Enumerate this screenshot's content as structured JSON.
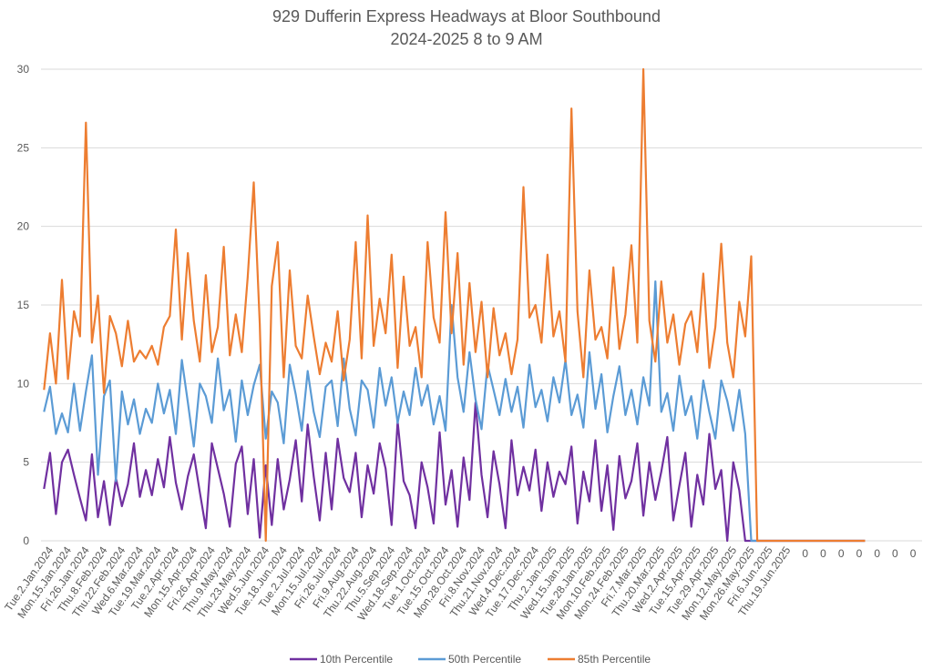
{
  "chart_data": {
    "type": "line",
    "title": "929 Dufferin Express Headways at Bloor Southbound",
    "subtitle": "2024-2025 8 to 9 AM",
    "xlabel": "",
    "ylabel": "",
    "ylim": [
      0,
      30
    ],
    "yticks": [
      0,
      5,
      10,
      15,
      20,
      25,
      30
    ],
    "grid": true,
    "legend_position": "bottom",
    "x_tick_labels": [
      "Tue.2.Jan.2024",
      "Mon.15.Jan.2024",
      "Fri.26.Jan.2024",
      "Thu.8.Feb.2024",
      "Thu.22.Feb.2024",
      "Wed.6.Mar.2024",
      "Tue.19.Mar.2024",
      "Tue.2.Apr.2024",
      "Mon.15.Apr.2024",
      "Fri.26.Apr.2024",
      "Thu.9.May.2024",
      "Thu.23.May.2024",
      "Wed.5.Jun.2024",
      "Tue.18.Jun.2024",
      "Tue.2.Jul.2024",
      "Mon.15.Jul.2024",
      "Fri.26.Jul.2024",
      "Fri.9.Aug.2024",
      "Thu.22.Aug.2024",
      "Thu.5.Sep.2024",
      "Wed.18.Sep.2024",
      "Tue.1.Oct.2024",
      "Tue.15.Oct.2024",
      "Mon.28.Oct.2024",
      "Fri.8.Nov.2024",
      "Thu.21.Nov.2024",
      "Wed.4.Dec.2024",
      "Tue.17.Dec.2024",
      "Thu.2.Jan.2025",
      "Wed.15.Jan.2025",
      "Tue.28.Jan.2025",
      "Mon.10.Feb.2025",
      "Mon.24.Feb.2025",
      "Fri.7.Mar.2025",
      "Thu.20.Mar.2025",
      "Wed.2.Apr.2025",
      "Tue.15.Apr.2025",
      "Tue.29.Apr.2025",
      "Mon.12.May.2025",
      "Mon.26.May.2025",
      "Fri.6.Jun.2025",
      "Thu.19.Jun.2025",
      "0",
      "0",
      "0",
      "0",
      "0",
      "0",
      "0"
    ],
    "points_per_label": 3,
    "series": [
      {
        "name": "10th Percentile",
        "color": "#7030a0",
        "values": [
          3.3,
          5.6,
          1.7,
          5.0,
          5.8,
          4.2,
          2.7,
          1.3,
          5.5,
          1.5,
          3.8,
          1.0,
          4.0,
          2.2,
          3.6,
          6.2,
          2.8,
          4.5,
          2.9,
          5.2,
          3.4,
          6.6,
          3.7,
          2.0,
          4.1,
          5.5,
          3.1,
          0.8,
          6.2,
          4.6,
          3.0,
          0.9,
          4.9,
          6.0,
          1.7,
          5.2,
          0.2,
          4.8,
          1.0,
          5.2,
          2.0,
          3.9,
          6.4,
          2.5,
          7.4,
          4.1,
          1.3,
          5.6,
          2.0,
          6.5,
          4.0,
          3.1,
          5.6,
          1.5,
          4.8,
          3.0,
          6.2,
          4.6,
          1.0,
          7.6,
          3.8,
          2.9,
          0.8,
          5.0,
          3.4,
          1.1,
          6.9,
          2.3,
          4.5,
          0.9,
          5.3,
          2.6,
          8.8,
          4.2,
          1.5,
          5.7,
          3.6,
          0.8,
          6.4,
          2.9,
          4.7,
          3.2,
          5.8,
          1.9,
          5.0,
          2.8,
          4.4,
          3.6,
          6.0,
          1.1,
          4.4,
          2.5,
          6.4,
          1.9,
          4.8,
          0.7,
          5.4,
          2.7,
          3.8,
          6.2,
          1.6,
          5.0,
          2.6,
          4.4,
          6.6,
          1.3,
          3.5,
          5.6,
          0.9,
          4.2,
          2.3,
          6.8,
          3.3,
          4.5,
          0.0,
          5.0,
          3.2,
          0,
          0,
          0,
          0,
          0,
          0,
          0,
          0,
          0,
          0,
          0,
          0,
          0,
          0,
          0,
          0,
          0,
          0,
          0,
          0,
          0
        ]
      },
      {
        "name": "50th Percentile",
        "color": "#5b9bd5",
        "values": [
          8.2,
          9.8,
          6.8,
          8.1,
          6.9,
          10.0,
          7.0,
          9.5,
          11.8,
          4.2,
          9.2,
          10.2,
          3.8,
          9.5,
          7.4,
          9.0,
          6.8,
          8.4,
          7.5,
          10.0,
          8.1,
          9.6,
          6.8,
          11.5,
          8.8,
          6.0,
          10.0,
          9.2,
          7.5,
          11.6,
          8.3,
          9.6,
          6.3,
          10.2,
          8.0,
          9.9,
          11.2,
          6.5,
          9.5,
          8.8,
          6.2,
          11.2,
          9.3,
          7.0,
          10.8,
          8.2,
          6.6,
          9.8,
          10.2,
          7.3,
          11.6,
          8.4,
          6.7,
          10.2,
          9.6,
          7.2,
          11.0,
          8.6,
          10.4,
          7.5,
          9.5,
          8.0,
          11.0,
          8.6,
          9.9,
          7.4,
          9.2,
          7.0,
          15.0,
          10.4,
          8.2,
          12.0,
          9.0,
          7.1,
          11.2,
          9.6,
          8.0,
          10.3,
          8.2,
          9.8,
          7.2,
          11.2,
          8.5,
          9.6,
          7.6,
          10.4,
          8.8,
          11.5,
          8.0,
          9.3,
          7.2,
          12.0,
          8.4,
          10.6,
          6.9,
          9.2,
          11.1,
          8.0,
          9.6,
          7.4,
          10.4,
          8.6,
          16.5,
          8.2,
          9.4,
          7.0,
          10.5,
          8.0,
          9.2,
          6.5,
          10.2,
          8.2,
          6.5,
          10.2,
          8.9,
          7.0,
          9.6,
          6.8,
          0,
          0,
          0,
          0,
          0,
          0,
          0,
          0,
          0,
          0,
          0,
          0,
          0,
          0,
          0,
          0,
          0,
          0,
          0,
          0
        ]
      },
      {
        "name": "85th Percentile",
        "color": "#ed7d31",
        "values": [
          9.6,
          13.2,
          10.0,
          16.6,
          10.3,
          14.6,
          13.0,
          26.6,
          12.6,
          15.6,
          9.4,
          14.3,
          13.2,
          11.1,
          14.0,
          11.4,
          12.1,
          11.6,
          12.4,
          11.2,
          13.6,
          14.3,
          19.8,
          12.8,
          18.3,
          14.0,
          11.4,
          16.9,
          12.0,
          13.6,
          18.7,
          11.8,
          14.4,
          12.0,
          16.8,
          22.8,
          13.8,
          0.0,
          16.2,
          19.0,
          10.4,
          17.2,
          12.4,
          11.6,
          15.6,
          13.0,
          10.6,
          12.6,
          11.4,
          14.6,
          10.2,
          12.8,
          19.0,
          11.6,
          20.7,
          12.4,
          15.4,
          13.2,
          18.2,
          11.0,
          16.8,
          12.4,
          13.6,
          10.4,
          19.0,
          14.2,
          12.6,
          20.9,
          13.2,
          18.3,
          11.2,
          16.4,
          12.0,
          15.2,
          10.4,
          14.8,
          11.8,
          13.2,
          10.6,
          12.8,
          22.5,
          14.2,
          15.0,
          12.6,
          18.2,
          13.0,
          14.6,
          11.4,
          27.5,
          14.6,
          10.4,
          17.2,
          12.8,
          13.6,
          11.6,
          17.4,
          12.2,
          14.4,
          18.8,
          12.6,
          30.0,
          14.0,
          11.4,
          16.5,
          12.6,
          14.4,
          11.2,
          13.8,
          14.6,
          12.0,
          17.0,
          11.0,
          13.6,
          18.9,
          12.6,
          10.4,
          15.2,
          13.0,
          18.1,
          0.0,
          0,
          0,
          0,
          0,
          0,
          0,
          0,
          0,
          0,
          0,
          0,
          0,
          0,
          0,
          0,
          0,
          0,
          0
        ]
      }
    ]
  }
}
